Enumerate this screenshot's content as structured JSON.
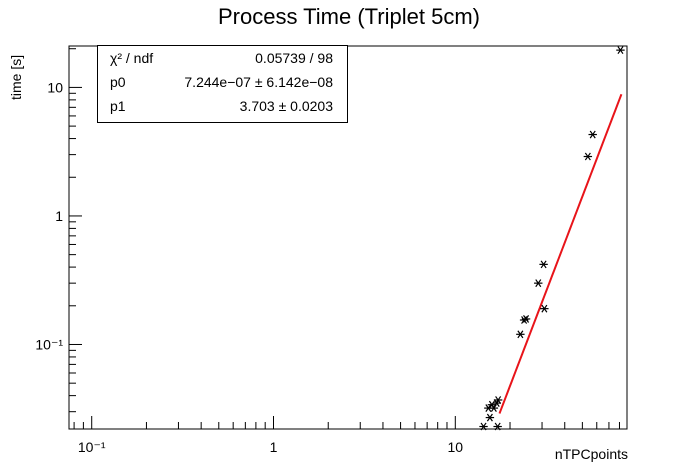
{
  "chart_data": {
    "type": "scatter",
    "title": "Process Time (Triplet 5cm)",
    "xlabel": "nTPCpoints",
    "ylabel": "time [s]",
    "x_scale": "log",
    "y_scale": "log",
    "xlim": [
      0.075,
      88
    ],
    "ylim": [
      0.022,
      21
    ],
    "grid": false,
    "x_tick_labels": [
      "10⁻¹",
      "1",
      "10"
    ],
    "y_tick_labels": [
      "10⁻¹",
      "1",
      "10"
    ],
    "points": [
      {
        "x": 14.3,
        "y": 0.023
      },
      {
        "x": 15.2,
        "y": 0.032
      },
      {
        "x": 15.5,
        "y": 0.027
      },
      {
        "x": 15.9,
        "y": 0.034
      },
      {
        "x": 16.3,
        "y": 0.032
      },
      {
        "x": 16.9,
        "y": 0.035
      },
      {
        "x": 17.2,
        "y": 0.037
      },
      {
        "x": 17.1,
        "y": 0.023
      },
      {
        "x": 22.8,
        "y": 0.12
      },
      {
        "x": 23.9,
        "y": 0.155
      },
      {
        "x": 24.5,
        "y": 0.158
      },
      {
        "x": 28.6,
        "y": 0.3
      },
      {
        "x": 30.6,
        "y": 0.42
      },
      {
        "x": 30.9,
        "y": 0.19
      },
      {
        "x": 53.6,
        "y": 2.9
      },
      {
        "x": 57.0,
        "y": 4.3
      },
      {
        "x": 81.0,
        "y": 19.5
      }
    ],
    "fit": {
      "function": "p0 * x^p1",
      "color": "#e8141a",
      "x_range": [
        17.5,
        82
      ],
      "p0": 7.244e-07,
      "p1": 3.703
    },
    "stats_box": {
      "rows": [
        {
          "label": "χ² / ndf",
          "value": "0.05739 / 98"
        },
        {
          "label": "p0",
          "value": "7.244e−07 ± 6.142e−08"
        },
        {
          "label": "p1",
          "value": "3.703 ± 0.0203"
        }
      ]
    },
    "marker": "asterisk",
    "marker_color": "#000000"
  }
}
